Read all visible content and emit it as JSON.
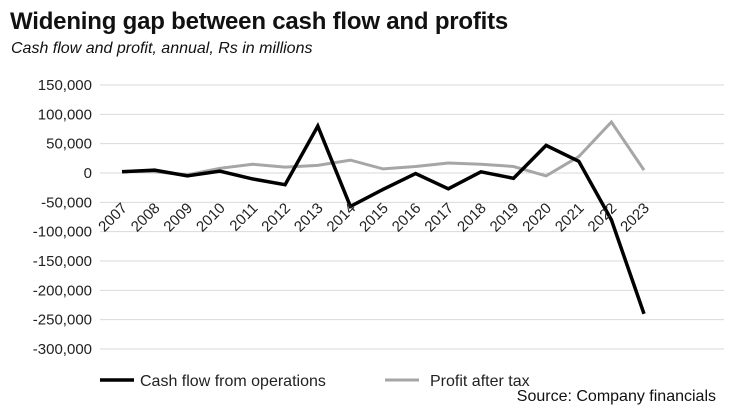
{
  "chart_data": {
    "type": "line",
    "title": "Widening gap between cash flow and profits",
    "subtitle": "Cash flow and profit, annual, Rs in millions",
    "source": "Source: Company financials",
    "xlabel": "",
    "ylabel": "",
    "categories": [
      "2007",
      "2008",
      "2009",
      "2010",
      "2011",
      "2012",
      "2013",
      "2014",
      "2015",
      "2016",
      "2017",
      "2018",
      "2019",
      "2020",
      "2021",
      "2022",
      "2023"
    ],
    "ylim": [
      -300000,
      150000
    ],
    "yticks": [
      150000,
      100000,
      50000,
      0,
      -50000,
      -100000,
      -150000,
      -200000,
      -250000,
      -300000
    ],
    "ytick_labels": [
      "150,000",
      "100,000",
      "50,000",
      "0",
      "-50,000",
      "-100,000",
      "-150,000",
      "-200,000",
      "-250,000",
      "-300,000"
    ],
    "grid": true,
    "legend_position": "bottom",
    "series": [
      {
        "name": "Cash flow from operations",
        "color": "#000000",
        "values": [
          2000,
          5000,
          -5000,
          3000,
          -10000,
          -20000,
          80000,
          -57000,
          -28000,
          -1000,
          -27000,
          2000,
          -9000,
          47000,
          20000,
          -80000,
          -240000
        ]
      },
      {
        "name": "Profit after tax",
        "color": "#a6a6a6",
        "values": [
          3000,
          2000,
          -3000,
          8000,
          15000,
          10000,
          13000,
          22000,
          7000,
          11000,
          17000,
          15000,
          11000,
          -5000,
          28000,
          87000,
          5000
        ]
      }
    ]
  }
}
